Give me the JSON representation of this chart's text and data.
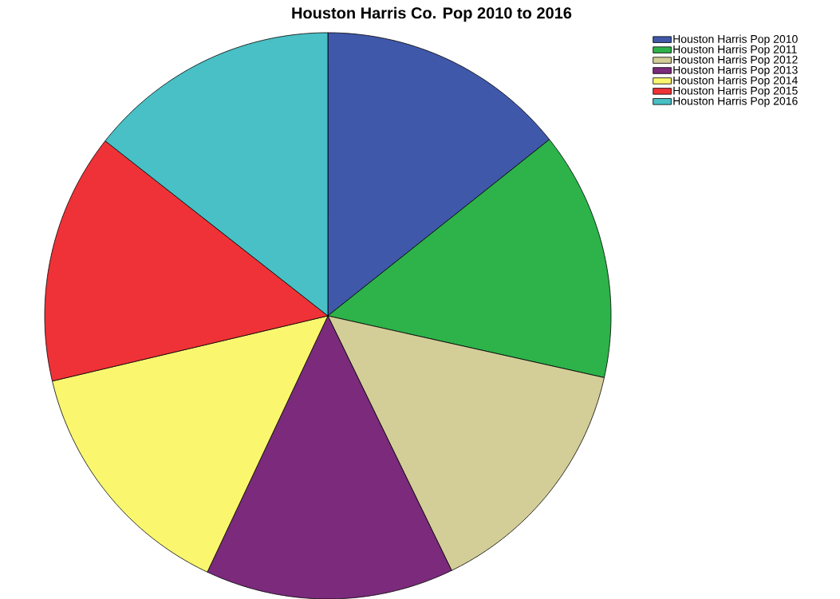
{
  "chart_data": {
    "type": "pie",
    "title": "Houston Harris Co. Pop 2010 to 2016",
    "categories": [
      "Houston Harris Pop 2010",
      "Houston Harris Pop 2011",
      "Houston Harris Pop 2012",
      "Houston Harris Pop 2013",
      "Houston Harris Pop 2014",
      "Houston Harris Pop 2015",
      "Houston Harris Pop 2016"
    ],
    "values": [
      14.3,
      14.2,
      14.3,
      14.2,
      14.3,
      14.3,
      14.4
    ],
    "colors": [
      "#3f58aa",
      "#2db34a",
      "#d3cd98",
      "#7b2a7c",
      "#faf76f",
      "#ef3237",
      "#48c0c5"
    ],
    "legend": "top right"
  }
}
